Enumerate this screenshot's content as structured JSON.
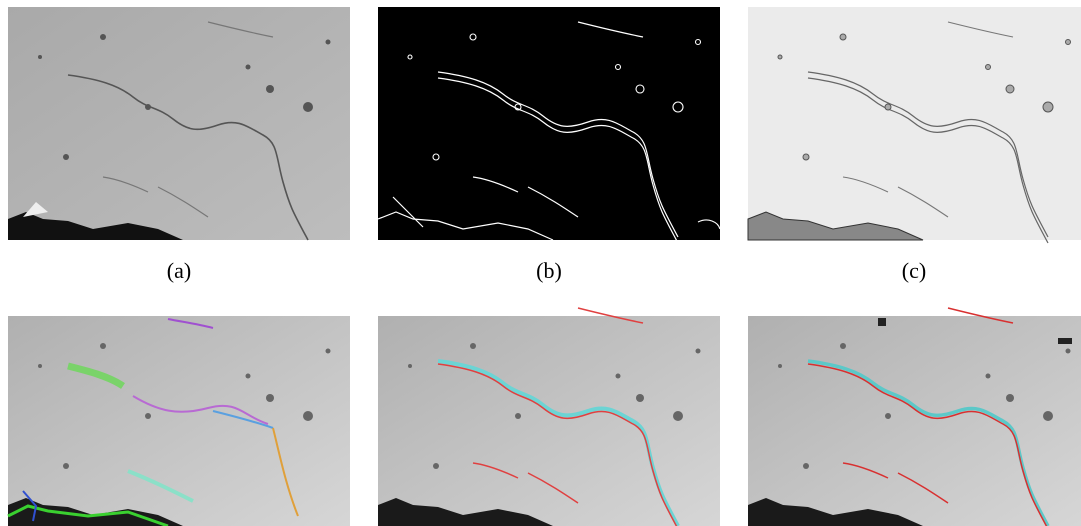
{
  "figure": {
    "panel_labels": [
      "(a)",
      "(b)",
      "(c)"
    ]
  }
}
